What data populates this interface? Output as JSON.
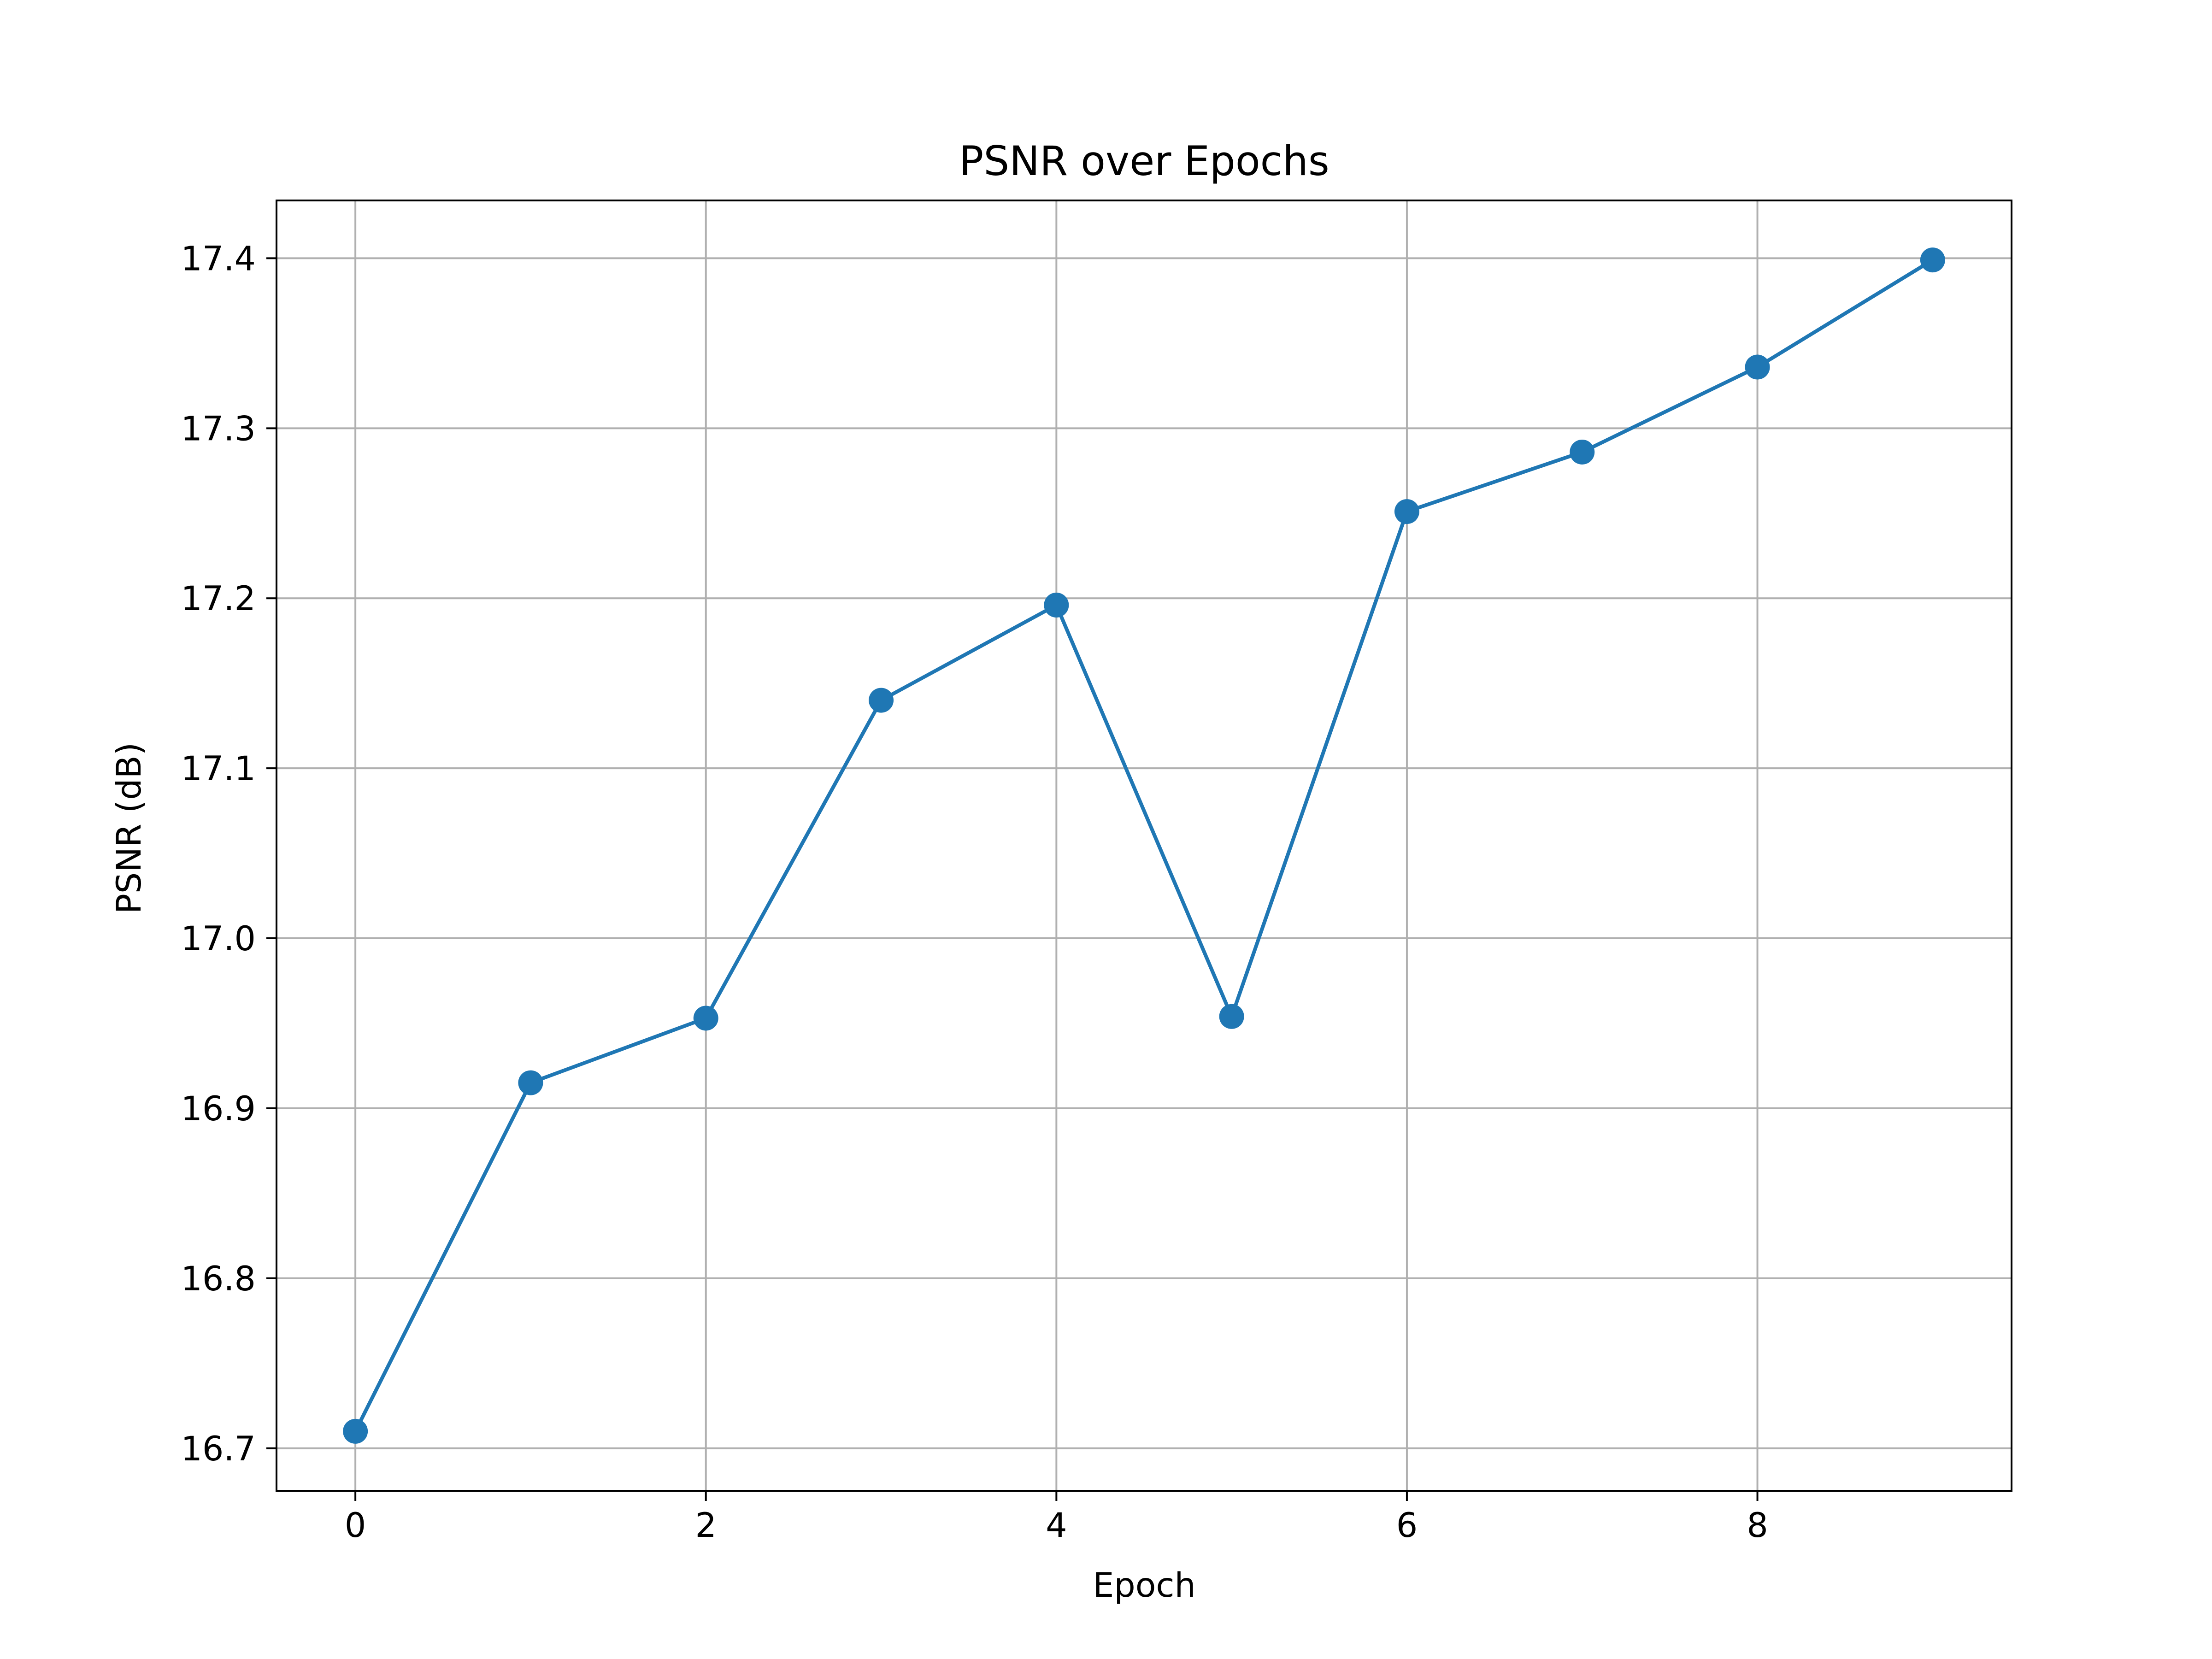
{
  "chart_data": {
    "type": "line",
    "title": "PSNR over Epochs",
    "xlabel": "Epoch",
    "ylabel": "PSNR (dB)",
    "x": [
      0,
      1,
      2,
      3,
      4,
      5,
      6,
      7,
      8,
      9
    ],
    "series": [
      {
        "values": [
          16.71,
          16.915,
          16.953,
          17.14,
          17.196,
          16.954,
          17.251,
          17.286,
          17.336,
          17.399
        ],
        "color": "#1f77b4",
        "marker": "circle"
      }
    ],
    "xlim": [
      -0.45,
      9.45
    ],
    "ylim": [
      16.675,
      17.434
    ],
    "xticks": [
      0,
      2,
      4,
      6,
      8
    ],
    "xtick_labels": [
      "0",
      "2",
      "4",
      "6",
      "8"
    ],
    "yticks": [
      16.7,
      16.8,
      16.9,
      17.0,
      17.1,
      17.2,
      17.3,
      17.4
    ],
    "ytick_labels": [
      "16.7",
      "16.8",
      "16.9",
      "17.0",
      "17.1",
      "17.2",
      "17.3",
      "17.4"
    ],
    "grid": true,
    "grid_color": "#b0b0b0",
    "legend": "none"
  }
}
